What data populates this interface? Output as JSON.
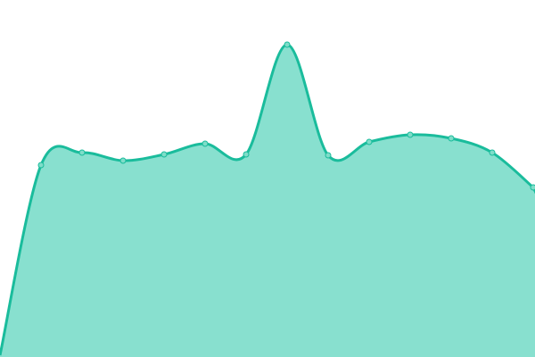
{
  "chart_data": {
    "type": "area",
    "title": "",
    "xlabel": "",
    "ylabel": "",
    "x": [
      0,
      1,
      2,
      3,
      4,
      5,
      6,
      7,
      8,
      9,
      10,
      11,
      12,
      13
    ],
    "series": [
      {
        "values": [
          2,
          215,
          229,
          220,
          227,
          239,
          227,
          350,
          226,
          241,
          249,
          245,
          229,
          190
        ]
      }
    ],
    "ylim": [
      0,
      400
    ],
    "axes_visible": false,
    "grid": false,
    "legend": "none",
    "colors": {
      "line": "#1abc9c",
      "fill": "#88e0cf",
      "point": "#7fddc9"
    }
  }
}
